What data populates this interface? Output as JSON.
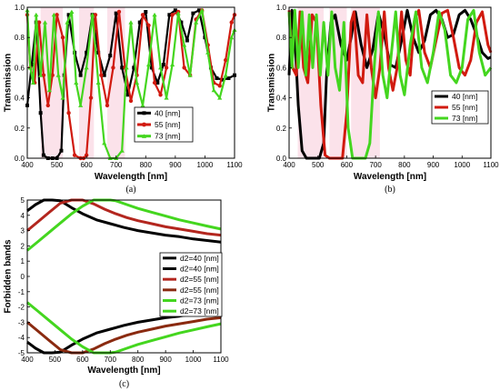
{
  "chart_data": [
    {
      "id": "a",
      "type": "line",
      "caption": "(a)",
      "xlabel": "Wavelength [nm]",
      "ylabel": "Transmission",
      "xlim": [
        400,
        1100
      ],
      "ylim": [
        0.0,
        1.0
      ],
      "xticks": [
        "400",
        "500",
        "600",
        "700",
        "800",
        "900",
        "1000",
        "1100"
      ],
      "yticks": [
        "0.0",
        "0.2",
        "0.4",
        "0.6",
        "0.8",
        "1.0"
      ],
      "legend_position": "center-right",
      "colors": {
        "40": "#000000",
        "55": "#d11a0f",
        "73": "#44d61f",
        "band": "#f6c8d6"
      },
      "series": [
        {
          "name": "40 [nm]",
          "color": "#000000",
          "x": [
            400,
            415,
            430,
            445,
            455,
            470,
            485,
            500,
            515,
            525,
            540,
            560,
            580,
            600,
            620,
            640,
            660,
            680,
            700,
            720,
            740,
            760,
            780,
            800,
            820,
            840,
            860,
            880,
            900,
            920,
            940,
            960,
            980,
            1000,
            1020,
            1040,
            1060,
            1080,
            1100
          ],
          "y": [
            0.35,
            0.62,
            0.9,
            0.3,
            0.02,
            0.0,
            0.0,
            0.0,
            0.05,
            0.55,
            0.95,
            0.7,
            0.55,
            0.7,
            0.95,
            0.7,
            0.55,
            0.68,
            0.96,
            0.6,
            0.42,
            0.6,
            0.9,
            0.97,
            0.6,
            0.5,
            0.62,
            0.95,
            0.98,
            0.9,
            0.78,
            0.96,
            0.98,
            0.8,
            0.6,
            0.53,
            0.52,
            0.53,
            0.55
          ]
        },
        {
          "name": "55 [nm]",
          "color": "#d11a0f",
          "x": [
            400,
            410,
            425,
            440,
            455,
            470,
            485,
            500,
            520,
            540,
            560,
            580,
            590,
            600,
            615,
            630,
            650,
            670,
            690,
            710,
            730,
            750,
            770,
            790,
            810,
            830,
            850,
            870,
            890,
            910,
            930,
            950,
            970,
            990,
            1010,
            1030,
            1050,
            1070,
            1090,
            1100
          ],
          "y": [
            0.95,
            0.6,
            0.5,
            0.9,
            0.55,
            0.35,
            0.55,
            0.95,
            0.8,
            0.3,
            0.02,
            0.0,
            0.0,
            0.02,
            0.4,
            0.95,
            0.55,
            0.35,
            0.6,
            0.97,
            0.6,
            0.38,
            0.55,
            0.95,
            0.88,
            0.5,
            0.42,
            0.6,
            0.95,
            0.97,
            0.6,
            0.55,
            0.92,
            0.98,
            0.75,
            0.5,
            0.48,
            0.65,
            0.9,
            0.95
          ]
        },
        {
          "name": "73 [nm]",
          "color": "#44d61f",
          "x": [
            400,
            410,
            420,
            430,
            445,
            460,
            475,
            490,
            505,
            520,
            535,
            550,
            565,
            580,
            600,
            620,
            640,
            660,
            680,
            700,
            720,
            735,
            750,
            770,
            790,
            810,
            830,
            850,
            870,
            890,
            910,
            930,
            950,
            970,
            990,
            1010,
            1030,
            1050,
            1070,
            1090,
            1100
          ],
          "y": [
            0.98,
            0.6,
            0.5,
            0.95,
            0.55,
            0.9,
            0.45,
            0.95,
            0.55,
            0.4,
            0.9,
            0.97,
            0.5,
            0.35,
            0.6,
            0.95,
            0.5,
            0.1,
            0.0,
            0.0,
            0.05,
            0.6,
            0.9,
            0.5,
            0.35,
            0.62,
            0.95,
            0.6,
            0.4,
            0.62,
            0.96,
            0.75,
            0.55,
            0.9,
            0.98,
            0.7,
            0.45,
            0.4,
            0.55,
            0.8,
            0.85
          ]
        }
      ]
    },
    {
      "id": "b",
      "type": "line",
      "caption": "(b)",
      "xlabel": "Wavelength [nm]",
      "ylabel": "Transmission",
      "xlim": [
        400,
        1100
      ],
      "ylim": [
        0.0,
        1.0
      ],
      "xticks": [
        "400",
        "500",
        "600",
        "700",
        "800",
        "900",
        "1000",
        "1100"
      ],
      "yticks": [
        "0.0",
        "0.2",
        "0.4",
        "0.6",
        "0.8",
        "1.0"
      ],
      "legend_position": "center-right",
      "series": [
        {
          "name": "40 [nm]",
          "color": "#000000",
          "x": [
            400,
            410,
            420,
            432,
            445,
            460,
            475,
            490,
            505,
            520,
            530,
            545,
            560,
            580,
            600,
            615,
            630,
            650,
            670,
            690,
            710,
            730,
            750,
            770,
            790,
            810,
            830,
            850,
            870,
            890,
            910,
            930,
            950,
            970,
            990,
            1010,
            1030,
            1050,
            1070,
            1090,
            1100
          ],
          "y": [
            0.55,
            0.98,
            0.8,
            0.35,
            0.05,
            0.0,
            0.0,
            0.0,
            0.0,
            0.1,
            0.55,
            0.9,
            0.95,
            0.75,
            0.65,
            0.8,
            0.97,
            0.75,
            0.6,
            0.72,
            0.96,
            0.82,
            0.62,
            0.6,
            0.78,
            0.98,
            0.8,
            0.7,
            0.78,
            0.95,
            0.98,
            0.92,
            0.8,
            0.82,
            0.95,
            0.98,
            0.92,
            0.82,
            0.7,
            0.66,
            0.67
          ]
        },
        {
          "name": "55 [nm]",
          "color": "#d11a0f",
          "x": [
            400,
            412,
            425,
            438,
            450,
            465,
            480,
            495,
            510,
            525,
            540,
            555,
            570,
            585,
            600,
            615,
            625,
            640,
            655,
            670,
            685,
            700,
            715,
            730,
            745,
            760,
            775,
            790,
            805,
            820,
            835,
            850,
            870,
            890,
            910,
            930,
            950,
            970,
            990,
            1010,
            1030,
            1050,
            1070,
            1090,
            1100
          ],
          "y": [
            0.98,
            0.6,
            0.55,
            0.97,
            0.6,
            0.5,
            0.95,
            0.9,
            0.35,
            0.02,
            0.0,
            0.0,
            0.0,
            0.0,
            0.3,
            0.9,
            0.97,
            0.55,
            0.5,
            0.95,
            0.6,
            0.4,
            0.6,
            0.97,
            0.6,
            0.45,
            0.6,
            0.97,
            0.65,
            0.55,
            0.92,
            0.98,
            0.7,
            0.6,
            0.78,
            0.96,
            0.98,
            0.8,
            0.6,
            0.55,
            0.65,
            0.9,
            0.97,
            0.75,
            0.7
          ]
        },
        {
          "name": "73 [nm]",
          "color": "#44d61f",
          "x": [
            400,
            410,
            420,
            432,
            445,
            458,
            470,
            482,
            495,
            508,
            520,
            535,
            548,
            560,
            575,
            590,
            605,
            620,
            635,
            650,
            665,
            680,
            695,
            710,
            725,
            740,
            755,
            770,
            785,
            800,
            820,
            840,
            860,
            880,
            900,
            920,
            940,
            960,
            980,
            1000,
            1020,
            1040,
            1060,
            1080,
            1100
          ],
          "y": [
            0.97,
            0.6,
            0.98,
            0.6,
            0.97,
            0.55,
            0.95,
            0.6,
            0.95,
            0.55,
            0.9,
            0.55,
            0.97,
            0.6,
            0.45,
            0.9,
            0.2,
            0.0,
            0.0,
            0.0,
            0.0,
            0.1,
            0.6,
            0.97,
            0.55,
            0.4,
            0.7,
            0.97,
            0.55,
            0.42,
            0.75,
            0.97,
            0.6,
            0.5,
            0.7,
            0.97,
            0.85,
            0.55,
            0.5,
            0.6,
            0.92,
            0.98,
            0.7,
            0.55,
            0.6
          ]
        }
      ]
    },
    {
      "id": "c",
      "type": "line",
      "caption": "(c)",
      "xlabel": "Wavelength [nm]",
      "ylabel": "Forbidden bands",
      "xlim": [
        400,
        1100
      ],
      "ylim": [
        -5,
        5
      ],
      "xticks": [
        "400",
        "500",
        "600",
        "700",
        "800",
        "900",
        "1000",
        "1100"
      ],
      "yticks": [
        "-5",
        "-4",
        "-3",
        "-2",
        "-1",
        "0",
        "1",
        "2",
        "3",
        "4",
        "5"
      ],
      "legend_position": "center-right",
      "series": [
        {
          "name": "d2=40 [nm]",
          "color": "#000000",
          "x": [
            400,
            430,
            460,
            490,
            520,
            560,
            600,
            650,
            700,
            750,
            800,
            850,
            900,
            950,
            1000,
            1050,
            1100
          ],
          "y": [
            4.3,
            4.7,
            5.0,
            5.0,
            4.95,
            4.5,
            4.1,
            3.7,
            3.45,
            3.2,
            3.0,
            2.85,
            2.7,
            2.6,
            2.45,
            2.35,
            2.25
          ]
        },
        {
          "name": "d2=40 [nm]",
          "color": "#000000",
          "x": [
            400,
            430,
            460,
            490,
            520,
            560,
            600,
            650,
            700,
            750,
            800,
            850,
            900,
            950,
            1000,
            1050,
            1100
          ],
          "y": [
            -4.3,
            -4.7,
            -5.0,
            -5.0,
            -4.95,
            -4.5,
            -4.1,
            -3.7,
            -3.45,
            -3.2,
            -3.0,
            -2.85,
            -2.7,
            -2.6,
            -2.45,
            -2.35,
            -2.25
          ]
        },
        {
          "name": "d2=55 [nm]",
          "color": "#b3261e",
          "x": [
            400,
            440,
            480,
            520,
            560,
            580,
            600,
            640,
            680,
            720,
            760,
            800,
            850,
            900,
            950,
            1000,
            1050,
            1100
          ],
          "y": [
            3.0,
            3.6,
            4.2,
            4.8,
            5.0,
            5.0,
            5.0,
            4.75,
            4.4,
            4.1,
            3.85,
            3.65,
            3.45,
            3.25,
            3.1,
            2.95,
            2.8,
            2.7
          ]
        },
        {
          "name": "d2=55 [nm]",
          "color": "#8a2a10",
          "x": [
            400,
            440,
            480,
            520,
            560,
            580,
            600,
            640,
            680,
            720,
            760,
            800,
            850,
            900,
            950,
            1000,
            1050,
            1100
          ],
          "y": [
            -3.0,
            -3.6,
            -4.2,
            -4.8,
            -5.0,
            -5.0,
            -5.0,
            -4.75,
            -4.4,
            -4.1,
            -3.85,
            -3.65,
            -3.45,
            -3.25,
            -3.1,
            -2.95,
            -2.8,
            -2.7
          ]
        },
        {
          "name": "d2=73 [nm]",
          "color": "#44d61f",
          "x": [
            400,
            440,
            480,
            520,
            560,
            600,
            640,
            660,
            680,
            700,
            720,
            760,
            800,
            850,
            900,
            950,
            1000,
            1050,
            1100
          ],
          "y": [
            1.7,
            2.3,
            2.9,
            3.5,
            4.1,
            4.6,
            5.0,
            5.0,
            5.0,
            5.0,
            4.95,
            4.7,
            4.45,
            4.2,
            3.95,
            3.7,
            3.5,
            3.3,
            3.1
          ]
        },
        {
          "name": "d2=73 [nm]",
          "color": "#44d61f",
          "x": [
            400,
            440,
            480,
            520,
            560,
            600,
            640,
            660,
            680,
            700,
            720,
            760,
            800,
            850,
            900,
            950,
            1000,
            1050,
            1100
          ],
          "y": [
            -1.7,
            -2.3,
            -2.9,
            -3.5,
            -4.1,
            -4.6,
            -5.0,
            -5.0,
            -5.0,
            -5.0,
            -4.95,
            -4.7,
            -4.45,
            -4.2,
            -3.95,
            -3.7,
            -3.5,
            -3.3,
            -3.1
          ]
        }
      ]
    }
  ]
}
